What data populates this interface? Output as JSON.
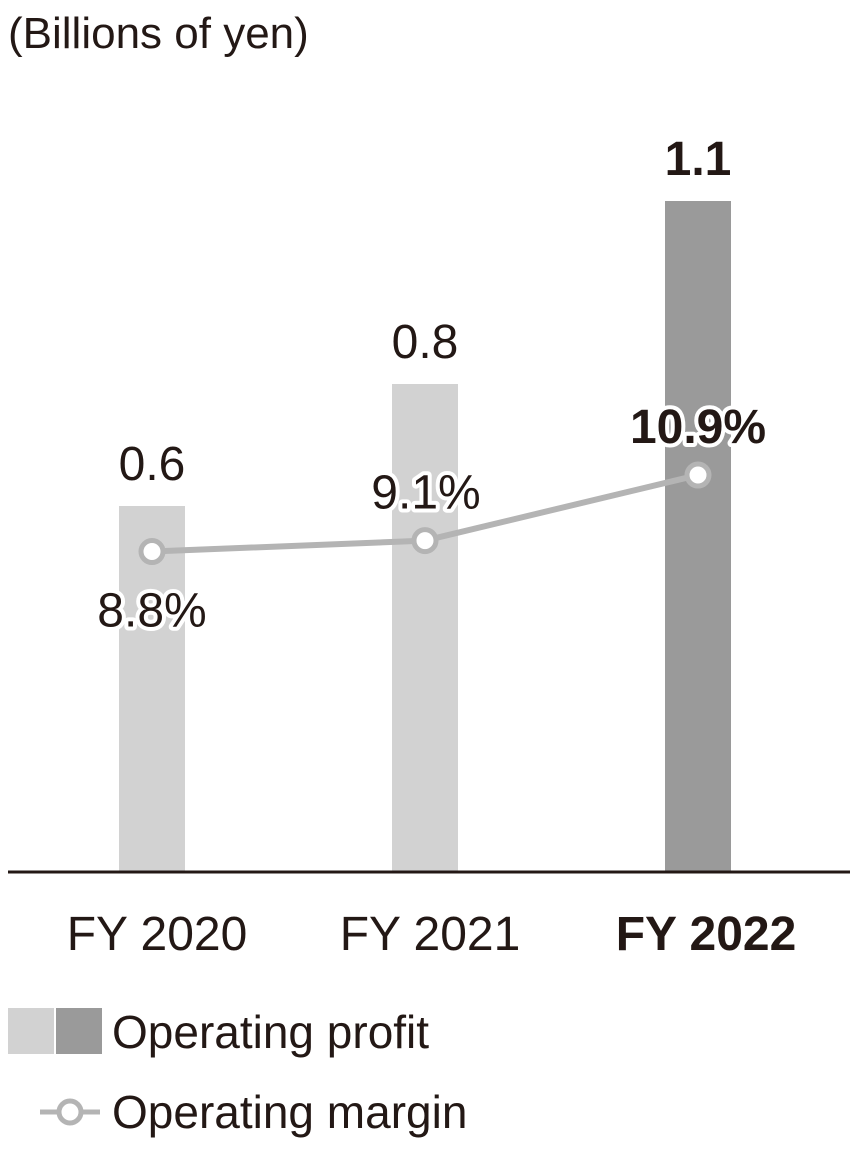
{
  "chart_data": {
    "type": "bar",
    "unit_label": "(Billions of yen)",
    "categories": [
      "FY 2020",
      "FY 2021",
      "FY 2022"
    ],
    "highlight_index": 2,
    "series": [
      {
        "name": "Operating profit",
        "kind": "bar",
        "values": [
          0.6,
          0.8,
          1.1
        ],
        "labels": [
          "0.6",
          "0.8",
          "1.1"
        ],
        "color": "#d2d2d2",
        "highlight_color": "#9a9a9a"
      },
      {
        "name": "Operating margin",
        "kind": "line",
        "values": [
          8.8,
          9.1,
          10.9
        ],
        "labels": [
          "8.8%",
          "9.1%",
          "10.9%"
        ],
        "color": "#b4b4b4"
      }
    ],
    "ylim": [
      0,
      1.2
    ],
    "margin_axis_range_percent": [
      0,
      20.1
    ],
    "grid": false,
    "legend_position": "bottom-left",
    "text_color": "#231815"
  }
}
